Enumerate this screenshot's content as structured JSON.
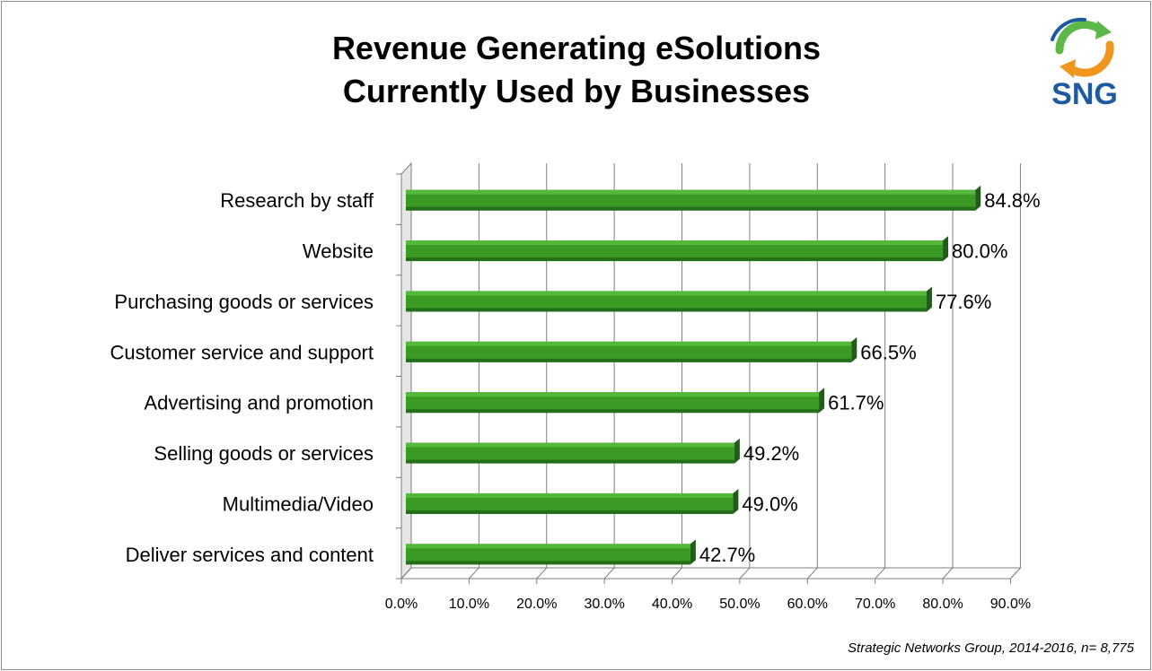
{
  "title_line1": "Revenue Generating eSolutions",
  "title_line2": "Currently Used by Businesses",
  "logo_text": "SNG",
  "source": "Strategic Networks Group, 2014-2016, n= 8,775",
  "colors": {
    "bar_top": "#54b83a",
    "bar_front": "#3a9a24",
    "bar_bottom": "#24701a",
    "bar_end": "#1f5e16",
    "grid": "#7f7f7f",
    "logo_blue": "#1e5aa0",
    "logo_green": "#5cb847",
    "logo_orange": "#f0961e"
  },
  "chart_data": {
    "type": "bar",
    "orientation": "horizontal",
    "title": "Revenue Generating eSolutions Currently Used by Businesses",
    "categories": [
      "Research by staff",
      "Website",
      "Purchasing goods or services",
      "Customer service and support",
      "Advertising and promotion",
      "Selling goods or services",
      "Multimedia/Video",
      "Deliver services and content"
    ],
    "values": [
      84.8,
      80.0,
      77.6,
      66.5,
      61.7,
      49.2,
      49.0,
      42.7
    ],
    "data_labels": [
      "84.8%",
      "80.0%",
      "77.6%",
      "66.5%",
      "61.7%",
      "49.2%",
      "49.0%",
      "42.7%"
    ],
    "xlim": [
      0,
      90
    ],
    "x_ticks": [
      0,
      10,
      20,
      30,
      40,
      50,
      60,
      70,
      80,
      90
    ],
    "x_tick_labels": [
      "0.0%",
      "10.0%",
      "20.0%",
      "30.0%",
      "40.0%",
      "50.0%",
      "60.0%",
      "70.0%",
      "80.0%",
      "90.0%"
    ],
    "grid": true,
    "style": "3d"
  }
}
